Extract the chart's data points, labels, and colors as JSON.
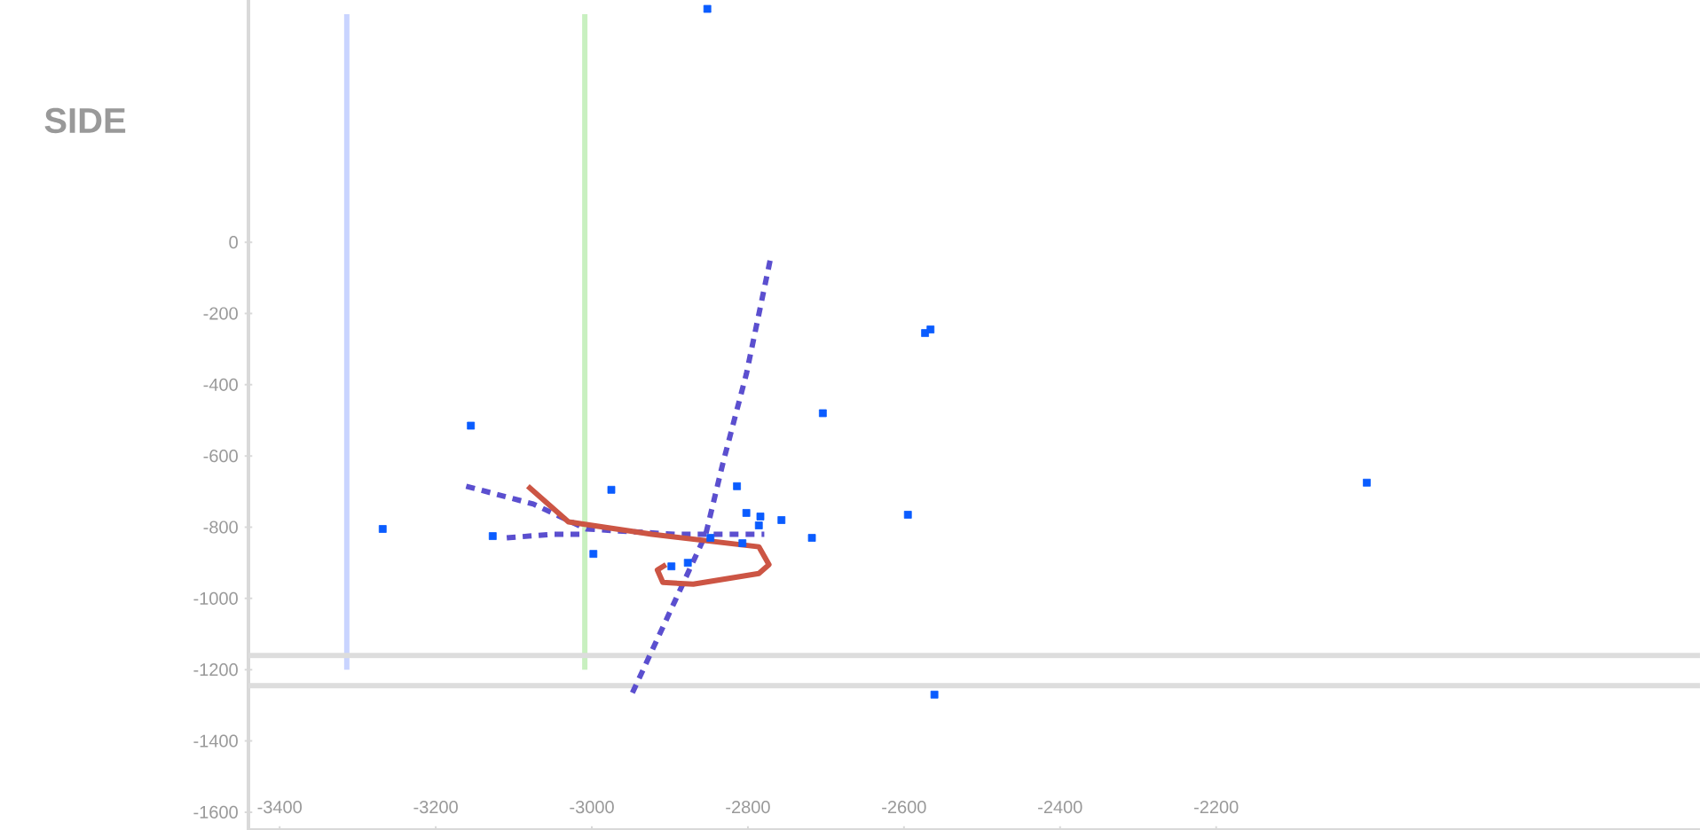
{
  "chart_data": {
    "type": "scatter",
    "title": "SIDE",
    "xlim": [
      -3440,
      -1580
    ],
    "ylim": [
      -1650,
      680
    ],
    "xticks": [
      -3400,
      -3200,
      -3000,
      -2800,
      -2600,
      -2400,
      -2200
    ],
    "yticks": [
      -1600,
      -1400,
      -1200,
      -1000,
      -800,
      -600,
      -400,
      -200,
      0
    ],
    "ref_lines": [
      {
        "axis": "x",
        "value": -3314,
        "color": "#c9d4ff"
      },
      {
        "axis": "x",
        "value": -3009,
        "color": "#c8f0c0"
      },
      {
        "axis": "y",
        "value": -1160,
        "color": "#dddddd"
      },
      {
        "axis": "y",
        "value": -1245,
        "color": "#dddddd"
      }
    ],
    "series": [
      {
        "type": "line",
        "color": "#5b4fcf",
        "line_style": "dashed",
        "marker": "none",
        "x": [
          -2948,
          -2893,
          -2854,
          -2832,
          -2802,
          -2770
        ],
        "values": [
          -1265,
          -1005,
          -820,
          -620,
          -370,
          -35
        ]
      },
      {
        "type": "line",
        "color": "#5b4fcf",
        "line_style": "dashed",
        "marker": "none",
        "x": [
          -3161,
          -3075,
          -3007,
          -2893,
          -2779
        ],
        "values": [
          -685,
          -735,
          -805,
          -820,
          -820
        ]
      },
      {
        "type": "line",
        "color": "#5b4fcf",
        "line_style": "dashed",
        "marker": "none",
        "x": [
          -3109,
          -3052,
          -3007
        ],
        "values": [
          -830,
          -820,
          -820
        ]
      },
      {
        "type": "line",
        "color": "#cc5544",
        "line_style": "solid",
        "marker": "none",
        "x": [
          -3082,
          -3030,
          -2923,
          -2786,
          -2773,
          -2786,
          -2870,
          -2909,
          -2916,
          -2905
        ],
        "values": [
          -685,
          -785,
          -820,
          -855,
          -905,
          -930,
          -960,
          -955,
          -920,
          -905
        ]
      },
      {
        "color": "#0a5cff",
        "marker": "square",
        "x": [
          -2852,
          -3155,
          -3268,
          -3127,
          -2975,
          -2998,
          -2704,
          -2573,
          -2566,
          -2595,
          -2007,
          -2561,
          -2814,
          -2757,
          -2718,
          -2898,
          -2877,
          -2786,
          -2848,
          -2807,
          -2784,
          -2802
        ],
        "values": [
          655,
          -515,
          -805,
          -825,
          -695,
          -875,
          -480,
          -255,
          -245,
          -765,
          -675,
          -1270,
          -685,
          -780,
          -830,
          -910,
          -900,
          -795,
          -830,
          -845,
          -770,
          -760
        ]
      }
    ]
  }
}
